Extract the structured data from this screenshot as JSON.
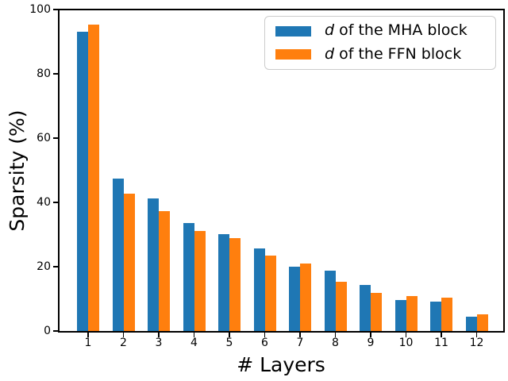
{
  "chart_data": {
    "type": "bar",
    "title": "",
    "xlabel": "# Layers",
    "ylabel": "Sparsity (%)",
    "categories": [
      "1",
      "2",
      "3",
      "4",
      "5",
      "6",
      "7",
      "8",
      "9",
      "10",
      "11",
      "12"
    ],
    "series": [
      {
        "name": "d of the MHA block",
        "color": "#1f77b4",
        "values": [
          93.0,
          47.4,
          41.2,
          33.7,
          30.1,
          25.8,
          20.1,
          18.8,
          14.4,
          9.6,
          9.2,
          4.5
        ]
      },
      {
        "name": "d of the FFN block",
        "color": "#ff7f0e",
        "values": [
          95.3,
          42.8,
          37.3,
          31.1,
          29.0,
          23.5,
          21.1,
          15.2,
          11.8,
          10.9,
          10.3,
          5.1
        ]
      }
    ],
    "ylim": [
      0,
      100
    ],
    "yticks": [
      0,
      20,
      40,
      60,
      80,
      100
    ],
    "grid": false,
    "legend": {
      "position": "upper right",
      "items": [
        {
          "symbol": "d",
          "rest": " of the MHA block",
          "color": "#1f77b4"
        },
        {
          "symbol": "d",
          "rest": " of the FFN block",
          "color": "#ff7f0e"
        }
      ]
    },
    "colors": {
      "axis": "#000000",
      "background": "#ffffff",
      "legend_border": "#cccccc"
    }
  }
}
